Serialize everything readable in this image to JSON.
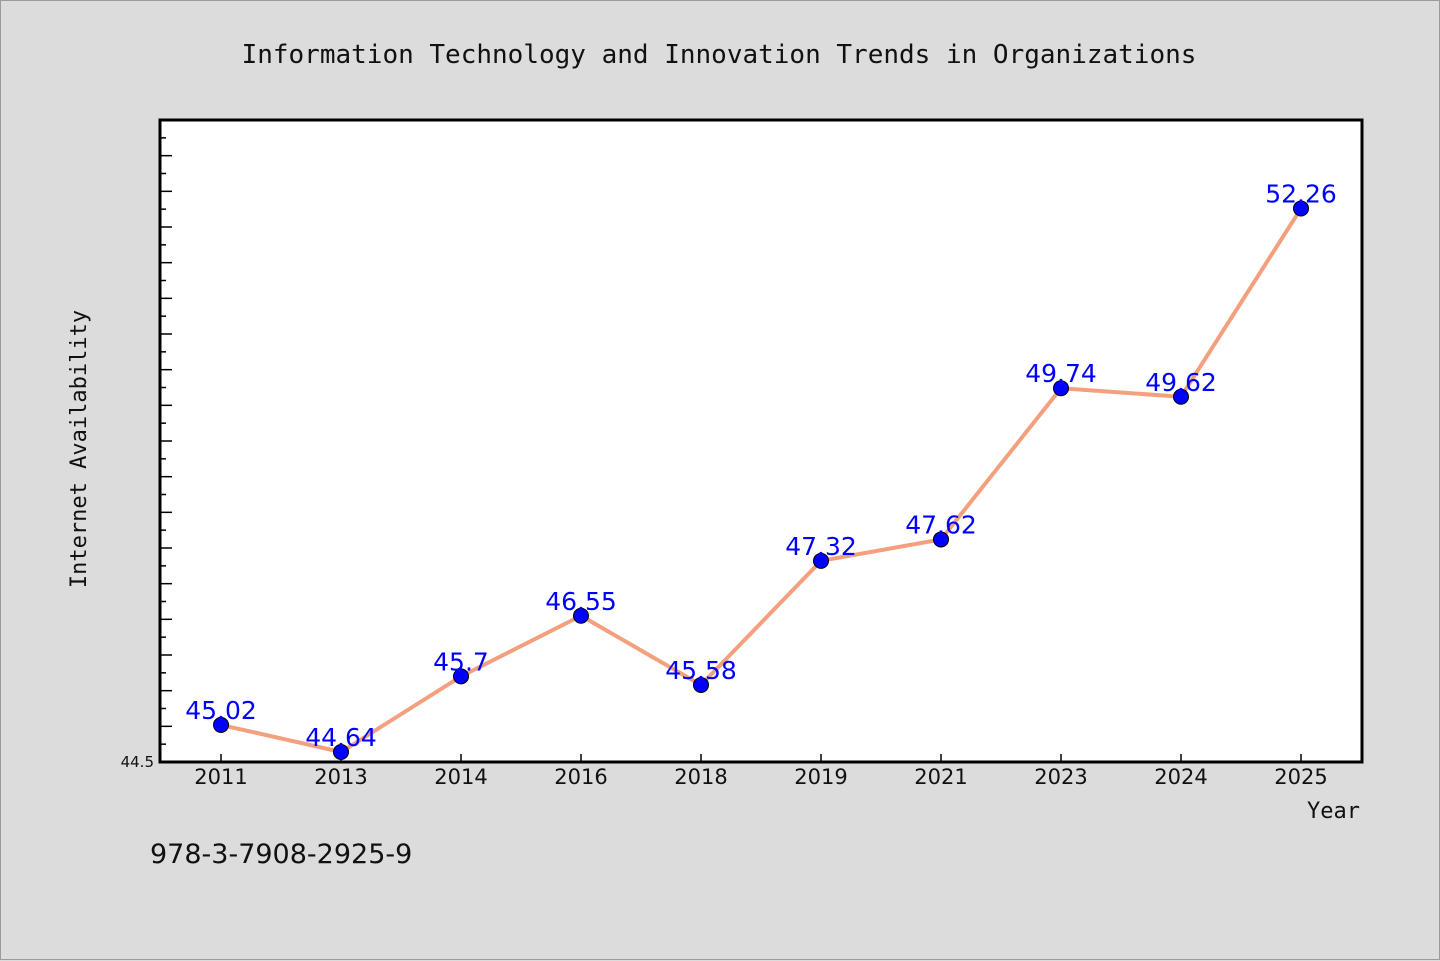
{
  "chart_data": {
    "type": "line",
    "title": "Information Technology and Innovation Trends in Organizations",
    "xlabel": "Year",
    "ylabel": "Internet Availability",
    "categories": [
      "2011",
      "2013",
      "2014",
      "2016",
      "2018",
      "2019",
      "2021",
      "2023",
      "2024",
      "2025"
    ],
    "values": [
      45.02,
      44.64,
      45.7,
      46.55,
      45.58,
      47.32,
      47.62,
      49.74,
      49.62,
      52.26
    ],
    "data_labels": [
      "45.02",
      "44.64",
      "45.7",
      "46.55",
      "45.58",
      "47.32",
      "47.62",
      "49.74",
      "49.62",
      "52.26"
    ],
    "ylim": [
      44.5,
      53.5
    ],
    "y_tick_labels": [
      "44.5"
    ],
    "line_color": "#f4a07e",
    "marker_color": "#0000ff",
    "label_color": "#0000ff",
    "grid": false,
    "legend": "none"
  },
  "footer": {
    "text": "978-3-7908-2925-9"
  }
}
